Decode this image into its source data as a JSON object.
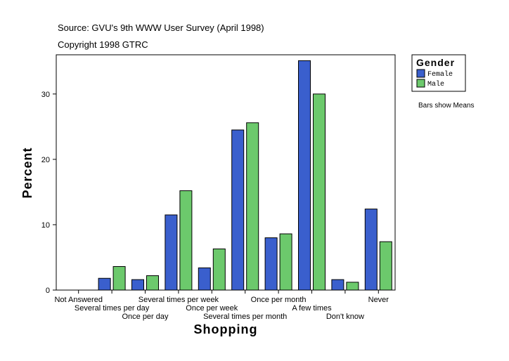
{
  "header": {
    "source": "Source: GVU's 9th WWW User Survey (April 1998)",
    "copyright": "Copyright 1998 GTRC"
  },
  "legend": {
    "title": "Gender",
    "items": [
      {
        "label": "Female",
        "color": "#3a5fcd"
      },
      {
        "label": "Male",
        "color": "#6cc96c"
      }
    ],
    "note": "Bars show Means"
  },
  "chart_data": {
    "type": "bar",
    "xlabel": "Shopping",
    "ylabel": "Percent",
    "ylim": [
      0,
      36
    ],
    "yticks": [
      0,
      10,
      20,
      30
    ],
    "categories": [
      "Not Answered",
      "Several times per day",
      "Once per day",
      "Several times per week",
      "Once per week",
      "Several times per month",
      "Once per month",
      "A few times",
      "Don't know",
      "Never"
    ],
    "series": [
      {
        "name": "Female",
        "color": "#3a5fcd",
        "values": [
          0,
          1.8,
          1.6,
          11.5,
          3.4,
          24.5,
          8.0,
          35.1,
          1.6,
          12.4
        ]
      },
      {
        "name": "Male",
        "color": "#6cc96c",
        "values": [
          0,
          3.6,
          2.2,
          15.2,
          6.3,
          25.6,
          8.6,
          30.0,
          1.2,
          7.4
        ]
      }
    ],
    "grid": false,
    "legend_position": "right"
  }
}
